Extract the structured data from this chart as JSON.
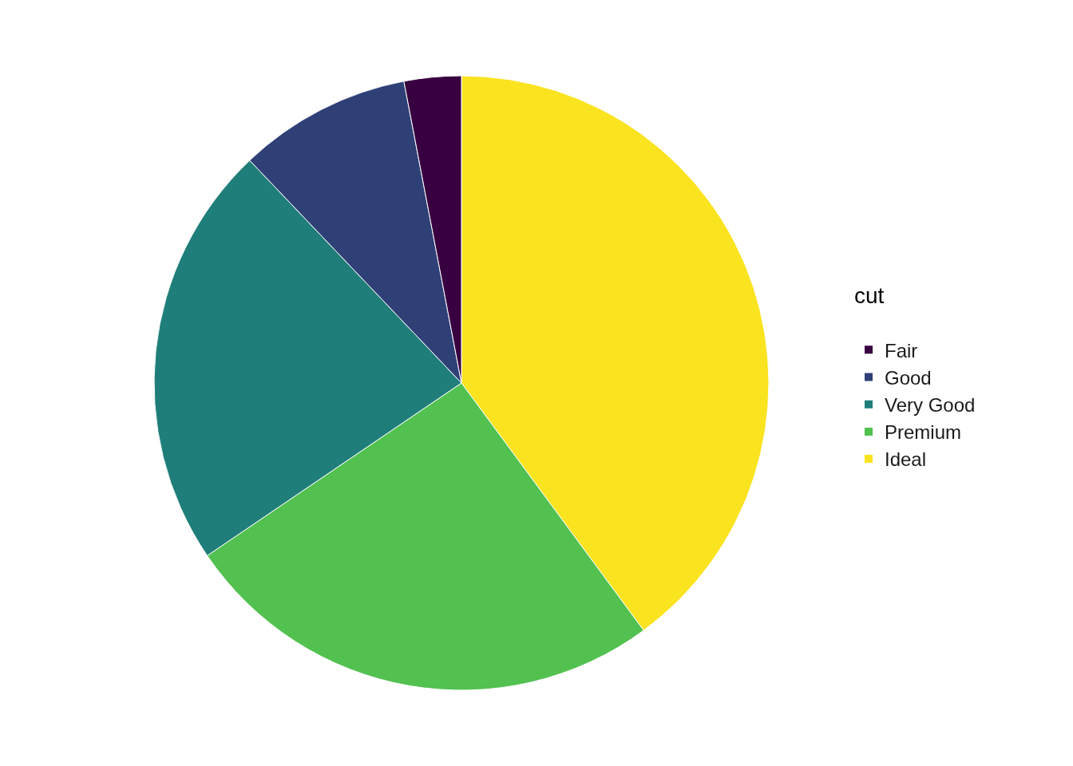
{
  "chart_data": {
    "type": "pie",
    "legend_title": "cut",
    "categories": [
      "Fair",
      "Good",
      "Very Good",
      "Premium",
      "Ideal"
    ],
    "values": [
      3.0,
      9.1,
      22.4,
      25.6,
      39.9
    ],
    "colors": [
      "#380040",
      "#2f4077",
      "#1f7e79",
      "#52c150",
      "#fae31f"
    ],
    "legend": "right"
  }
}
